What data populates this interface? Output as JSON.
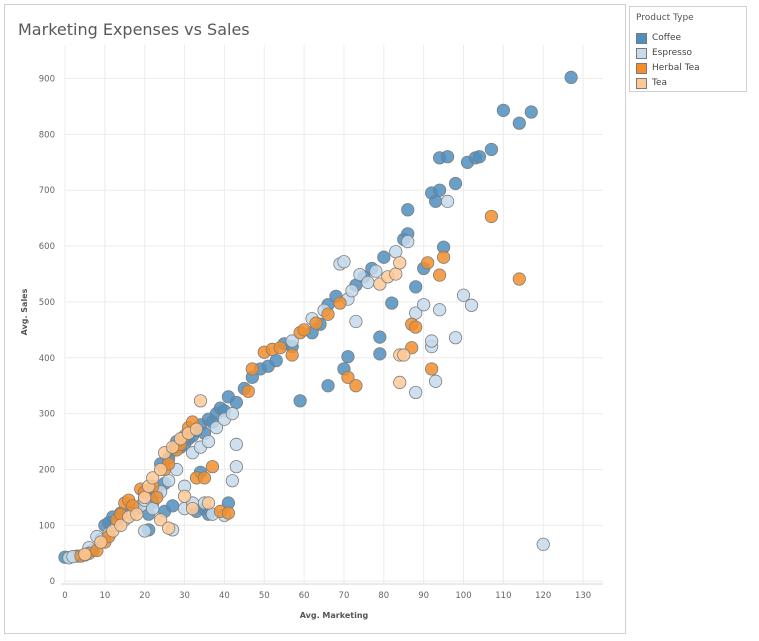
{
  "chart_data": {
    "type": "scatter",
    "title": "Marketing Expenses vs Sales",
    "xlabel": "Avg. Marketing",
    "ylabel": "Avg. Sales",
    "xlim": [
      0,
      135
    ],
    "ylim": [
      -5,
      960
    ],
    "xticks": [
      0,
      10,
      20,
      30,
      40,
      50,
      60,
      70,
      80,
      90,
      100,
      110,
      120,
      130
    ],
    "yticks": [
      0,
      100,
      200,
      300,
      400,
      500,
      600,
      700,
      800,
      900
    ],
    "grid": true,
    "legend_position": "right",
    "legend_title": "Product Type",
    "series": [
      {
        "name": "Coffee",
        "color": "#4e8fc0",
        "points": [
          [
            0,
            43
          ],
          [
            3,
            45
          ],
          [
            5,
            47
          ],
          [
            7,
            55
          ],
          [
            9,
            75
          ],
          [
            10,
            100
          ],
          [
            11,
            105
          ],
          [
            12,
            115
          ],
          [
            14,
            122
          ],
          [
            16,
            125
          ],
          [
            18,
            130
          ],
          [
            20,
            150
          ],
          [
            21,
            120
          ],
          [
            22,
            140
          ],
          [
            23,
            160
          ],
          [
            24,
            210
          ],
          [
            25,
            175
          ],
          [
            26,
            220
          ],
          [
            27,
            235
          ],
          [
            28,
            250
          ],
          [
            29,
            240
          ],
          [
            30,
            245
          ],
          [
            31,
            255
          ],
          [
            32,
            260
          ],
          [
            33,
            270
          ],
          [
            34,
            280
          ],
          [
            35,
            265
          ],
          [
            36,
            290
          ],
          [
            37,
            285
          ],
          [
            38,
            300
          ],
          [
            39,
            310
          ],
          [
            40,
            305
          ],
          [
            41,
            330
          ],
          [
            43,
            320
          ],
          [
            45,
            345
          ],
          [
            47,
            365
          ],
          [
            49,
            380
          ],
          [
            51,
            385
          ],
          [
            53,
            395
          ],
          [
            55,
            425
          ],
          [
            57,
            420
          ],
          [
            59,
            323
          ],
          [
            62,
            445
          ],
          [
            64,
            460
          ],
          [
            66,
            350
          ],
          [
            66,
            495
          ],
          [
            68,
            510
          ],
          [
            70,
            380
          ],
          [
            71,
            402
          ],
          [
            73,
            530
          ],
          [
            75,
            545
          ],
          [
            77,
            560
          ],
          [
            79,
            407
          ],
          [
            79,
            437
          ],
          [
            80,
            580
          ],
          [
            82,
            498
          ],
          [
            85,
            612
          ],
          [
            86,
            622
          ],
          [
            86,
            665
          ],
          [
            88,
            527
          ],
          [
            90,
            560
          ],
          [
            92,
            695
          ],
          [
            93,
            680
          ],
          [
            94,
            758
          ],
          [
            94,
            700
          ],
          [
            95,
            598
          ],
          [
            96,
            760
          ],
          [
            98,
            712
          ],
          [
            101,
            750
          ],
          [
            103,
            758
          ],
          [
            104,
            760
          ],
          [
            107,
            773
          ],
          [
            110,
            843
          ],
          [
            114,
            820
          ],
          [
            117,
            840
          ],
          [
            127,
            902
          ],
          [
            21,
            92
          ],
          [
            25,
            125
          ],
          [
            27,
            135
          ],
          [
            33,
            125
          ],
          [
            35,
            130
          ],
          [
            34,
            195
          ],
          [
            36,
            120
          ],
          [
            41,
            140
          ]
        ]
      },
      {
        "name": "Espresso",
        "color": "#c6dbec",
        "points": [
          [
            1,
            42
          ],
          [
            2,
            44
          ],
          [
            6,
            60
          ],
          [
            8,
            80
          ],
          [
            11,
            85
          ],
          [
            13,
            100
          ],
          [
            15,
            110
          ],
          [
            17,
            120
          ],
          [
            19,
            135
          ],
          [
            20,
            145
          ],
          [
            22,
            130
          ],
          [
            24,
            160
          ],
          [
            26,
            180
          ],
          [
            28,
            200
          ],
          [
            30,
            170
          ],
          [
            32,
            230
          ],
          [
            34,
            240
          ],
          [
            36,
            250
          ],
          [
            38,
            275
          ],
          [
            40,
            290
          ],
          [
            42,
            300
          ],
          [
            43,
            245
          ],
          [
            43,
            205
          ],
          [
            42,
            180
          ],
          [
            20,
            90
          ],
          [
            27,
            92
          ],
          [
            30,
            130
          ],
          [
            32,
            140
          ],
          [
            35,
            140
          ],
          [
            37,
            120
          ],
          [
            40,
            118
          ],
          [
            57,
            430
          ],
          [
            62,
            470
          ],
          [
            65,
            485
          ],
          [
            69,
            568
          ],
          [
            70,
            572
          ],
          [
            71,
            505
          ],
          [
            72,
            520
          ],
          [
            73,
            465
          ],
          [
            74,
            549
          ],
          [
            76,
            535
          ],
          [
            78,
            555
          ],
          [
            83,
            590
          ],
          [
            86,
            608
          ],
          [
            88,
            480
          ],
          [
            90,
            495
          ],
          [
            92,
            420
          ],
          [
            92,
            430
          ],
          [
            93,
            358
          ],
          [
            94,
            486
          ],
          [
            96,
            680
          ],
          [
            98,
            436
          ],
          [
            100,
            512
          ],
          [
            102,
            494
          ],
          [
            120,
            66
          ],
          [
            88,
            338
          ]
        ]
      },
      {
        "name": "Herbal Tea",
        "color": "#f28e2b",
        "points": [
          [
            4,
            45
          ],
          [
            6,
            50
          ],
          [
            8,
            55
          ],
          [
            10,
            70
          ],
          [
            11,
            80
          ],
          [
            13,
            110
          ],
          [
            14,
            120
          ],
          [
            15,
            140
          ],
          [
            16,
            145
          ],
          [
            17,
            135
          ],
          [
            19,
            165
          ],
          [
            20,
            160
          ],
          [
            22,
            170
          ],
          [
            23,
            150
          ],
          [
            25,
            200
          ],
          [
            26,
            210
          ],
          [
            28,
            235
          ],
          [
            29,
            245
          ],
          [
            30,
            260
          ],
          [
            31,
            275
          ],
          [
            32,
            285
          ],
          [
            33,
            185
          ],
          [
            35,
            185
          ],
          [
            37,
            205
          ],
          [
            39,
            125
          ],
          [
            41,
            122
          ],
          [
            46,
            340
          ],
          [
            47,
            380
          ],
          [
            50,
            410
          ],
          [
            52,
            415
          ],
          [
            54,
            418
          ],
          [
            57,
            405
          ],
          [
            59,
            445
          ],
          [
            60,
            450
          ],
          [
            63,
            462
          ],
          [
            66,
            478
          ],
          [
            69,
            498
          ],
          [
            71,
            365
          ],
          [
            73,
            350
          ],
          [
            87,
            460
          ],
          [
            88,
            455
          ],
          [
            87,
            418
          ],
          [
            91,
            570
          ],
          [
            92,
            380
          ],
          [
            94,
            548
          ],
          [
            95,
            580
          ],
          [
            107,
            653
          ],
          [
            114,
            541
          ]
        ]
      },
      {
        "name": "Tea",
        "color": "#ffc997",
        "points": [
          [
            5,
            48
          ],
          [
            9,
            70
          ],
          [
            12,
            90
          ],
          [
            14,
            100
          ],
          [
            16,
            115
          ],
          [
            18,
            120
          ],
          [
            20,
            150
          ],
          [
            21,
            170
          ],
          [
            22,
            185
          ],
          [
            24,
            200
          ],
          [
            25,
            230
          ],
          [
            27,
            240
          ],
          [
            29,
            255
          ],
          [
            31,
            265
          ],
          [
            33,
            272
          ],
          [
            34,
            323
          ],
          [
            30,
            152
          ],
          [
            32,
            130
          ],
          [
            36,
            140
          ],
          [
            24,
            110
          ],
          [
            26,
            95
          ],
          [
            79,
            532
          ],
          [
            81,
            545
          ],
          [
            83,
            550
          ],
          [
            84,
            570
          ],
          [
            84,
            405
          ],
          [
            85,
            405
          ],
          [
            84,
            356
          ]
        ]
      }
    ]
  }
}
